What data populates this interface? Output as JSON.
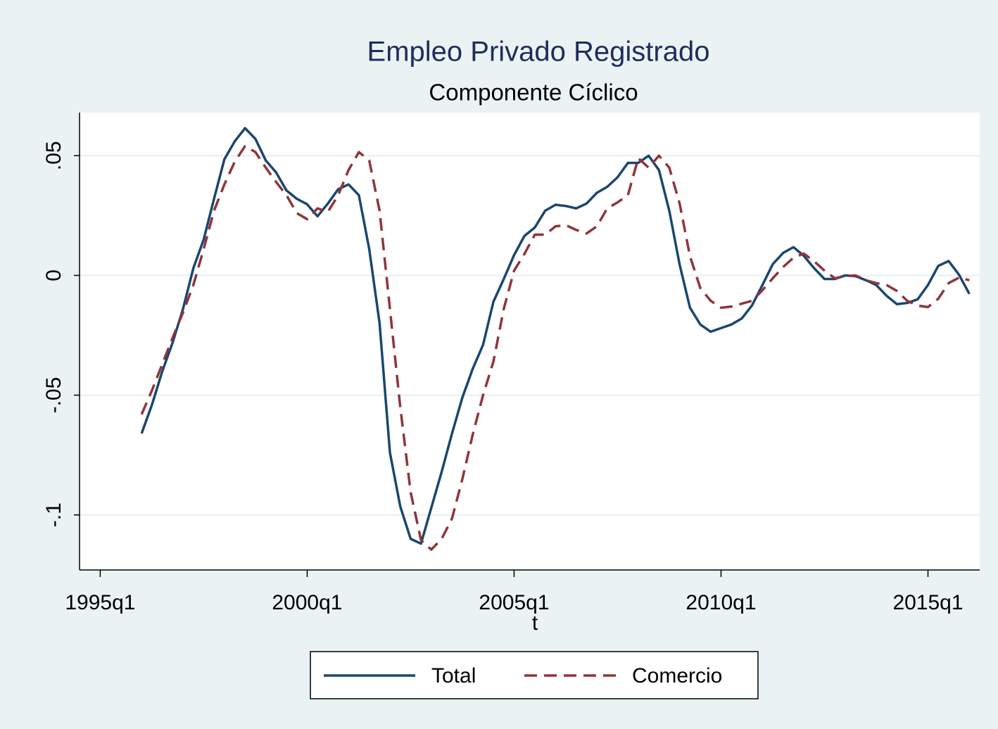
{
  "chart_data": {
    "type": "line",
    "title": "Empleo Privado Registrado",
    "subtitle": "Componente Cíclico",
    "x_label": "t",
    "x": [
      "1996q1",
      "1996q2",
      "1996q3",
      "1996q4",
      "1997q1",
      "1997q2",
      "1997q3",
      "1997q4",
      "1998q1",
      "1998q2",
      "1998q3",
      "1998q4",
      "1999q1",
      "1999q2",
      "1999q3",
      "1999q4",
      "2000q1",
      "2000q2",
      "2000q3",
      "2000q4",
      "2001q1",
      "2001q2",
      "2001q3",
      "2001q4",
      "2002q1",
      "2002q2",
      "2002q3",
      "2002q4",
      "2003q1",
      "2003q2",
      "2003q3",
      "2003q4",
      "2004q1",
      "2004q2",
      "2004q3",
      "2004q4",
      "2005q1",
      "2005q2",
      "2005q3",
      "2005q4",
      "2006q1",
      "2006q2",
      "2006q3",
      "2006q4",
      "2007q1",
      "2007q2",
      "2007q3",
      "2007q4",
      "2008q1",
      "2008q2",
      "2008q3",
      "2008q4",
      "2009q1",
      "2009q2",
      "2009q3",
      "2009q4",
      "2010q1",
      "2010q2",
      "2010q3",
      "2010q4",
      "2011q1",
      "2011q2",
      "2011q3",
      "2011q4",
      "2012q1",
      "2012q2",
      "2012q3",
      "2012q4",
      "2013q1",
      "2013q2",
      "2013q3",
      "2013q4",
      "2014q1",
      "2014q2",
      "2014q3",
      "2014q4",
      "2015q1",
      "2015q2",
      "2015q3",
      "2015q4",
      "2016q1"
    ],
    "series": [
      {
        "name": "Total",
        "color": "#1a476f",
        "dash": false,
        "values": [
          -0.066,
          -0.054,
          -0.04,
          -0.028,
          -0.014,
          0.003,
          0.015,
          0.032,
          0.0485,
          0.056,
          0.0615,
          0.057,
          0.048,
          0.043,
          0.0355,
          0.032,
          0.0297,
          0.0247,
          0.03,
          0.036,
          0.038,
          0.0335,
          0.011,
          -0.02,
          -0.074,
          -0.0965,
          -0.11,
          -0.112,
          -0.097,
          -0.082,
          -0.066,
          -0.051,
          -0.039,
          -0.029,
          -0.011,
          -0.0015,
          0.0085,
          0.0165,
          0.02,
          0.027,
          0.0295,
          0.029,
          0.028,
          0.03,
          0.0345,
          0.037,
          0.041,
          0.047,
          0.047,
          0.05,
          0.044,
          0.027,
          0.0045,
          -0.0135,
          -0.0205,
          -0.0235,
          -0.022,
          -0.0205,
          -0.018,
          -0.0125,
          -0.004,
          0.0047,
          0.0094,
          0.0118,
          0.0082,
          0.003,
          -0.0015,
          -0.0015,
          0,
          -0.0003,
          -0.002,
          -0.004,
          -0.0085,
          -0.012,
          -0.0115,
          -0.01,
          -0.004,
          0.004,
          0.006,
          0.0003,
          -0.0077
        ]
      },
      {
        "name": "Comercio",
        "color": "#90353b",
        "dash": true,
        "values": [
          -0.058,
          -0.048,
          -0.037,
          -0.026,
          -0.0155,
          -0.004,
          0.011,
          0.027,
          0.038,
          0.0475,
          0.054,
          0.0515,
          0.045,
          0.039,
          0.0335,
          0.026,
          0.0235,
          0.028,
          0.0265,
          0.0335,
          0.044,
          0.0515,
          0.048,
          0.027,
          -0.014,
          -0.055,
          -0.0905,
          -0.1105,
          -0.1145,
          -0.11,
          -0.1015,
          -0.085,
          -0.0665,
          -0.05,
          -0.036,
          -0.014,
          0.002,
          0.009,
          0.017,
          0.017,
          0.0205,
          0.021,
          0.019,
          0.0175,
          0.0205,
          0.028,
          0.0305,
          0.0335,
          0.049,
          0.045,
          0.05,
          0.045,
          0.03,
          0.008,
          -0.0053,
          -0.0106,
          -0.0135,
          -0.013,
          -0.0118,
          -0.0106,
          -0.0062,
          -0.0012,
          0.0035,
          0.0074,
          0.0091,
          0.0059,
          0.002,
          -0.0012,
          -0.0003,
          0,
          -0.002,
          -0.0032,
          -0.004,
          -0.0065,
          -0.0106,
          -0.0126,
          -0.0132,
          -0.0097,
          -0.0032,
          -0.0009,
          -0.002
        ]
      }
    ],
    "xlim": [
      "1994q3",
      "2016q2"
    ],
    "xticks": [
      "1995q1",
      "2000q1",
      "2005q1",
      "2010q1",
      "2015q1"
    ],
    "ylim": [
      -0.123,
      0.068
    ],
    "yticks": [
      {
        "value": -0.1,
        "label": "-.1"
      },
      {
        "value": -0.05,
        "label": "-.05"
      },
      0,
      {
        "value": 0.05,
        "label": ".05"
      }
    ],
    "grid": true,
    "legend": "bottom"
  }
}
